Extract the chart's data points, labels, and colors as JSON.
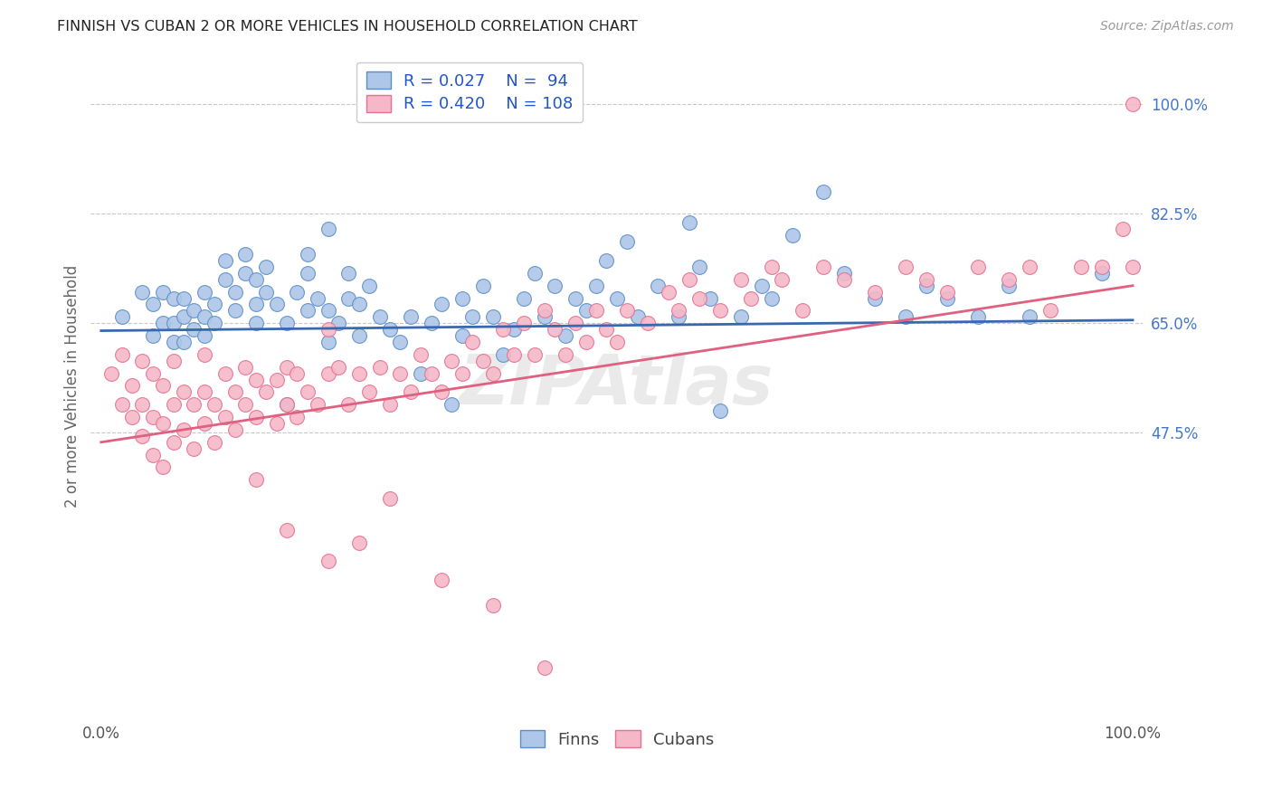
{
  "title": "FINNISH VS CUBAN 2 OR MORE VEHICLES IN HOUSEHOLD CORRELATION CHART",
  "source": "Source: ZipAtlas.com",
  "ylabel": "2 or more Vehicles in Household",
  "yticks": [
    0.475,
    0.65,
    0.825,
    1.0
  ],
  "ytick_labels": [
    "47.5%",
    "65.0%",
    "82.5%",
    "100.0%"
  ],
  "legend_r_finn": "0.027",
  "legend_n_finn": "94",
  "legend_r_cuban": "0.420",
  "legend_n_cuban": "108",
  "finn_color": "#aec6e8",
  "cuban_color": "#f5b8c8",
  "finn_edge_color": "#5b8fc9",
  "cuban_edge_color": "#e87090",
  "finn_line_color": "#3a68b0",
  "cuban_line_color": "#e06080",
  "finn_line_x": [
    0.0,
    1.0
  ],
  "finn_line_y": [
    0.638,
    0.655
  ],
  "cuban_line_x": [
    0.0,
    1.0
  ],
  "cuban_line_y": [
    0.46,
    0.71
  ],
  "watermark": "ZIPAtlas",
  "background_color": "#ffffff",
  "grid_color": "#c8c8c8",
  "title_color": "#222222",
  "ylabel_color": "#666666",
  "tick_color": "#4477cc",
  "legend_text_color": "#2255cc",
  "xlim": [
    -0.01,
    1.01
  ],
  "ylim": [
    0.02,
    1.08
  ],
  "finn_scatter_x": [
    0.02,
    0.04,
    0.05,
    0.05,
    0.06,
    0.06,
    0.07,
    0.07,
    0.07,
    0.08,
    0.08,
    0.08,
    0.09,
    0.09,
    0.1,
    0.1,
    0.1,
    0.11,
    0.11,
    0.12,
    0.12,
    0.13,
    0.13,
    0.14,
    0.14,
    0.15,
    0.15,
    0.15,
    0.16,
    0.16,
    0.17,
    0.18,
    0.18,
    0.19,
    0.2,
    0.2,
    0.21,
    0.22,
    0.22,
    0.23,
    0.24,
    0.24,
    0.25,
    0.25,
    0.26,
    0.27,
    0.28,
    0.29,
    0.3,
    0.31,
    0.32,
    0.33,
    0.34,
    0.35,
    0.35,
    0.36,
    0.37,
    0.38,
    0.39,
    0.4,
    0.41,
    0.42,
    0.43,
    0.44,
    0.45,
    0.46,
    0.47,
    0.48,
    0.49,
    0.5,
    0.51,
    0.52,
    0.54,
    0.56,
    0.57,
    0.58,
    0.59,
    0.6,
    0.62,
    0.64,
    0.65,
    0.67,
    0.7,
    0.72,
    0.75,
    0.78,
    0.8,
    0.82,
    0.85,
    0.88,
    0.9,
    0.97,
    0.2,
    0.22
  ],
  "finn_scatter_y": [
    0.66,
    0.7,
    0.63,
    0.68,
    0.65,
    0.7,
    0.62,
    0.65,
    0.69,
    0.62,
    0.66,
    0.69,
    0.64,
    0.67,
    0.63,
    0.66,
    0.7,
    0.65,
    0.68,
    0.72,
    0.75,
    0.67,
    0.7,
    0.73,
    0.76,
    0.65,
    0.68,
    0.72,
    0.7,
    0.74,
    0.68,
    0.52,
    0.65,
    0.7,
    0.67,
    0.73,
    0.69,
    0.62,
    0.67,
    0.65,
    0.69,
    0.73,
    0.63,
    0.68,
    0.71,
    0.66,
    0.64,
    0.62,
    0.66,
    0.57,
    0.65,
    0.68,
    0.52,
    0.63,
    0.69,
    0.66,
    0.71,
    0.66,
    0.6,
    0.64,
    0.69,
    0.73,
    0.66,
    0.71,
    0.63,
    0.69,
    0.67,
    0.71,
    0.75,
    0.69,
    0.78,
    0.66,
    0.71,
    0.66,
    0.81,
    0.74,
    0.69,
    0.51,
    0.66,
    0.71,
    0.69,
    0.79,
    0.86,
    0.73,
    0.69,
    0.66,
    0.71,
    0.69,
    0.66,
    0.71,
    0.66,
    0.73,
    0.76,
    0.8
  ],
  "cuban_scatter_x": [
    0.01,
    0.02,
    0.02,
    0.03,
    0.03,
    0.04,
    0.04,
    0.04,
    0.05,
    0.05,
    0.05,
    0.06,
    0.06,
    0.06,
    0.07,
    0.07,
    0.07,
    0.08,
    0.08,
    0.09,
    0.09,
    0.1,
    0.1,
    0.1,
    0.11,
    0.11,
    0.12,
    0.12,
    0.13,
    0.13,
    0.14,
    0.14,
    0.15,
    0.15,
    0.16,
    0.17,
    0.17,
    0.18,
    0.18,
    0.19,
    0.19,
    0.2,
    0.21,
    0.22,
    0.22,
    0.23,
    0.24,
    0.25,
    0.26,
    0.27,
    0.28,
    0.29,
    0.3,
    0.31,
    0.32,
    0.33,
    0.34,
    0.35,
    0.36,
    0.37,
    0.38,
    0.39,
    0.4,
    0.41,
    0.42,
    0.43,
    0.44,
    0.45,
    0.46,
    0.47,
    0.48,
    0.49,
    0.5,
    0.51,
    0.53,
    0.55,
    0.56,
    0.57,
    0.58,
    0.6,
    0.62,
    0.63,
    0.65,
    0.66,
    0.68,
    0.7,
    0.72,
    0.75,
    0.78,
    0.8,
    0.82,
    0.85,
    0.88,
    0.9,
    0.92,
    0.95,
    0.97,
    0.99,
    1.0,
    1.0,
    0.15,
    0.18,
    0.22,
    0.25,
    0.28,
    0.33,
    0.38,
    0.43
  ],
  "cuban_scatter_y": [
    0.57,
    0.52,
    0.6,
    0.5,
    0.55,
    0.47,
    0.52,
    0.59,
    0.44,
    0.5,
    0.57,
    0.42,
    0.49,
    0.55,
    0.46,
    0.52,
    0.59,
    0.48,
    0.54,
    0.45,
    0.52,
    0.49,
    0.54,
    0.6,
    0.46,
    0.52,
    0.5,
    0.57,
    0.48,
    0.54,
    0.52,
    0.58,
    0.5,
    0.56,
    0.54,
    0.49,
    0.56,
    0.52,
    0.58,
    0.5,
    0.57,
    0.54,
    0.52,
    0.57,
    0.64,
    0.58,
    0.52,
    0.57,
    0.54,
    0.58,
    0.52,
    0.57,
    0.54,
    0.6,
    0.57,
    0.54,
    0.59,
    0.57,
    0.62,
    0.59,
    0.57,
    0.64,
    0.6,
    0.65,
    0.6,
    0.67,
    0.64,
    0.6,
    0.65,
    0.62,
    0.67,
    0.64,
    0.62,
    0.67,
    0.65,
    0.7,
    0.67,
    0.72,
    0.69,
    0.67,
    0.72,
    0.69,
    0.74,
    0.72,
    0.67,
    0.74,
    0.72,
    0.7,
    0.74,
    0.72,
    0.7,
    0.74,
    0.72,
    0.74,
    0.67,
    0.74,
    0.74,
    0.8,
    1.0,
    0.74,
    0.4,
    0.32,
    0.27,
    0.3,
    0.37,
    0.24,
    0.2,
    0.1
  ]
}
